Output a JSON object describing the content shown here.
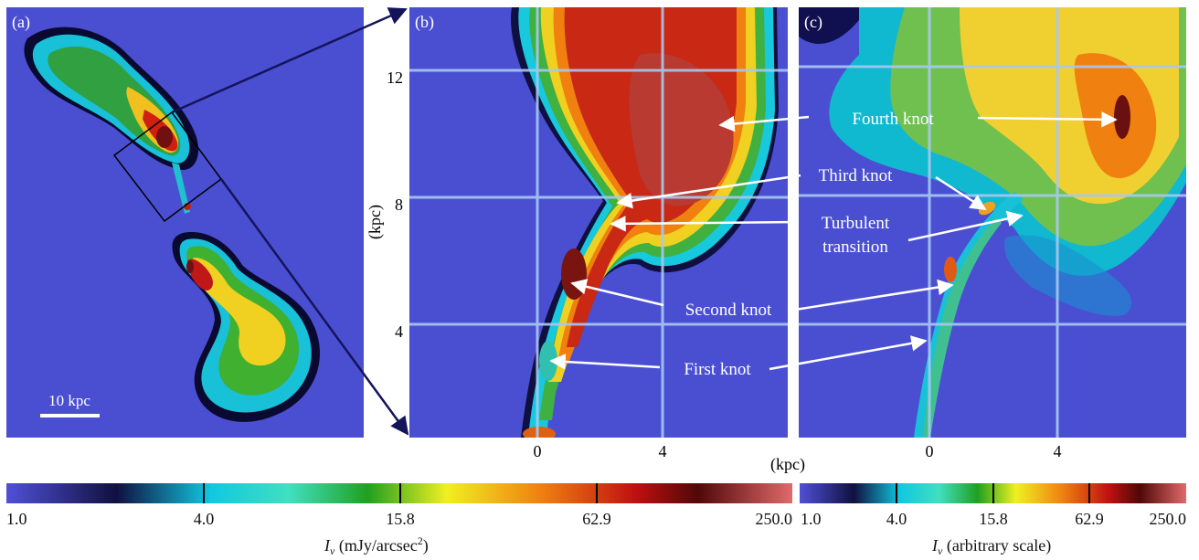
{
  "panels": {
    "a": {
      "label": "(a)",
      "scale_bar": "10 kpc"
    },
    "b": {
      "label": "(b)",
      "y_axis_label": "(kpc)",
      "x_axis_label": "(kpc)",
      "x_ticks": [
        "0",
        "4"
      ],
      "y_ticks": [
        "12",
        "8",
        "4"
      ]
    },
    "c": {
      "label": "(c)",
      "x_ticks": [
        "0",
        "4"
      ]
    }
  },
  "annotations": {
    "fourth_knot": "Fourth knot",
    "third_knot": "Third knot",
    "turbulent_1": "Turbulent",
    "turbulent_2": "transition",
    "second_knot": "Second knot",
    "first_knot": "First knot"
  },
  "colorbars": {
    "left": {
      "ticks": [
        "1.0",
        "4.0",
        "15.8",
        "62.9",
        "250.0"
      ],
      "title_symbol": "I",
      "title_sub": "ν",
      "title_units": " (mJy/arcsec",
      "title_sup": "2",
      "title_end": ")"
    },
    "right": {
      "ticks": [
        "1.0",
        "4.0",
        "15.8",
        "62.9",
        "250.0"
      ],
      "title_symbol": "I",
      "title_sub": "ν",
      "title_units": " (arbitrary scale)"
    }
  },
  "colors": {
    "background_field": "#4a4fd2",
    "grid": "#a8c8f0",
    "colormap": [
      "#3c3fc8",
      "#141450",
      "#10b8d8",
      "#30d0c0",
      "#30a030",
      "#f0e020",
      "#f08010",
      "#c02010",
      "#601010",
      "#e06060"
    ]
  }
}
